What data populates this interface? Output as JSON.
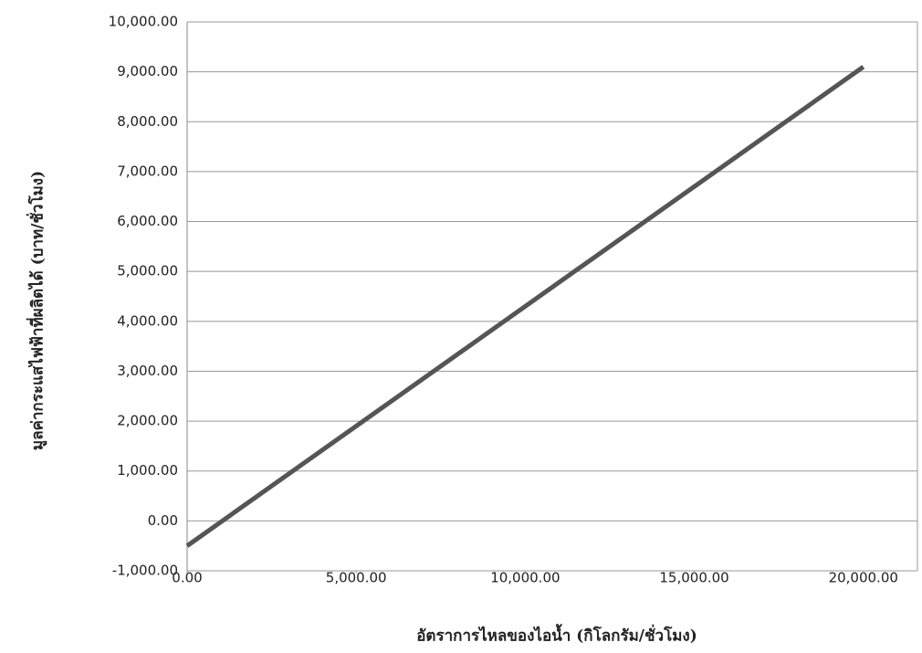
{
  "chart_data": {
    "type": "line",
    "x_label": "อัตราการไหลของไอน้ำ (กิโลกรัม/ชั่วโมง)",
    "y_label": "มูลค่ากระแสไฟฟ้าที่ผลิตได้ (บาท/ชั่วโมง)",
    "x": [
      0,
      20000
    ],
    "series": [
      {
        "color": "#555555",
        "values": [
          -500,
          9100
        ]
      }
    ],
    "xlim": [
      0,
      21600
    ],
    "xticks": [
      {
        "value": 0,
        "label": "0.00"
      },
      {
        "value": 5000,
        "label": "5,000.00"
      },
      {
        "value": 10000,
        "label": "10,000.00"
      },
      {
        "value": 15000,
        "label": "15,000.00"
      },
      {
        "value": 20000,
        "label": "20,000.00"
      }
    ],
    "ylim": [
      -1000,
      10000
    ],
    "yticks": [
      {
        "value": -1000,
        "label": "-1,000.00"
      },
      {
        "value": 0,
        "label": "0.00"
      },
      {
        "value": 1000,
        "label": "1,000.00"
      },
      {
        "value": 2000,
        "label": "2,000.00"
      },
      {
        "value": 3000,
        "label": "3,000.00"
      },
      {
        "value": 4000,
        "label": "4,000.00"
      },
      {
        "value": 5000,
        "label": "5,000.00"
      },
      {
        "value": 6000,
        "label": "6,000.00"
      },
      {
        "value": 7000,
        "label": "7,000.00"
      },
      {
        "value": 8000,
        "label": "8,000.00"
      },
      {
        "value": 9000,
        "label": "9,000.00"
      },
      {
        "value": 10000,
        "label": "10,000.00"
      }
    ],
    "grid": true
  }
}
